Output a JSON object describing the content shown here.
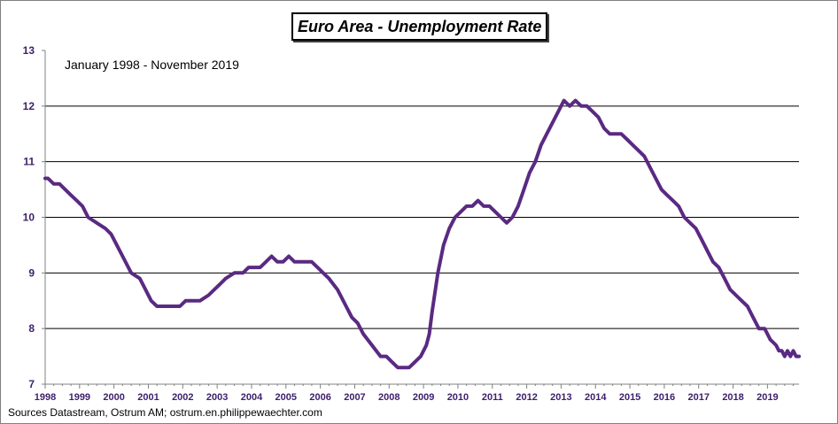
{
  "chart_data": {
    "type": "line",
    "title": "Euro Area - Unemployment Rate",
    "annotation": "January 1998 - November 2019",
    "source": "Sources Datastream, Ostrum AM;  ostrum.en.philippewaechter.com",
    "xlabel": "",
    "ylabel": "",
    "xlim": [
      1998.0,
      2019.917
    ],
    "ylim": [
      7,
      13
    ],
    "y_ticks": [
      "7",
      "8",
      "9",
      "10",
      "11",
      "12",
      "13"
    ],
    "x_ticks": [
      "1998",
      "1999",
      "2000",
      "2001",
      "2002",
      "2003",
      "2004",
      "2005",
      "2006",
      "2007",
      "2008",
      "2009",
      "2010",
      "2011",
      "2012",
      "2013",
      "2014",
      "2015",
      "2016",
      "2017",
      "2018",
      "2019"
    ],
    "grid": "horizontal",
    "legend": "none",
    "line_color": "#5a2a82",
    "tick_color": "#3d1f6b",
    "series": [
      {
        "x": [
          1998.0,
          1998.083,
          1998.25,
          1998.417,
          1998.583,
          1998.75,
          1998.917,
          1999.083,
          1999.25,
          1999.5,
          1999.75,
          1999.917,
          2000.083,
          2000.25,
          2000.5,
          2000.75,
          2000.917,
          2001.083,
          2001.25,
          2001.5,
          2001.75,
          2001.917,
          2002.083,
          2002.25,
          2002.5,
          2002.75,
          2002.917,
          2003.083,
          2003.25,
          2003.5,
          2003.75,
          2003.917,
          2004.083,
          2004.25,
          2004.417,
          2004.583,
          2004.75,
          2004.917,
          2005.083,
          2005.25,
          2005.5,
          2005.75,
          2005.917,
          2006.083,
          2006.25,
          2006.5,
          2006.75,
          2006.917,
          2007.083,
          2007.25,
          2007.5,
          2007.75,
          2007.917,
          2008.083,
          2008.25,
          2008.417,
          2008.583,
          2008.75,
          2008.917,
          2009.0,
          2009.083,
          2009.167,
          2009.25,
          2009.417,
          2009.583,
          2009.75,
          2009.917,
          2010.083,
          2010.25,
          2010.417,
          2010.583,
          2010.75,
          2010.917,
          2011.083,
          2011.25,
          2011.417,
          2011.583,
          2011.75,
          2011.917,
          2012.083,
          2012.25,
          2012.417,
          2012.583,
          2012.75,
          2012.917,
          2013.083,
          2013.25,
          2013.417,
          2013.583,
          2013.75,
          2013.917,
          2014.083,
          2014.25,
          2014.417,
          2014.583,
          2014.75,
          2014.917,
          2015.083,
          2015.25,
          2015.417,
          2015.583,
          2015.75,
          2015.917,
          2016.083,
          2016.25,
          2016.417,
          2016.583,
          2016.75,
          2016.917,
          2017.083,
          2017.25,
          2017.417,
          2017.583,
          2017.75,
          2017.917,
          2018.083,
          2018.25,
          2018.417,
          2018.583,
          2018.75,
          2018.917,
          2019.083,
          2019.25,
          2019.333,
          2019.417,
          2019.5,
          2019.583,
          2019.667,
          2019.75,
          2019.833,
          2019.917
        ],
        "y": [
          10.7,
          10.7,
          10.6,
          10.6,
          10.5,
          10.4,
          10.3,
          10.2,
          10.0,
          9.9,
          9.8,
          9.7,
          9.5,
          9.3,
          9.0,
          8.9,
          8.7,
          8.5,
          8.4,
          8.4,
          8.4,
          8.4,
          8.5,
          8.5,
          8.5,
          8.6,
          8.7,
          8.8,
          8.9,
          9.0,
          9.0,
          9.1,
          9.1,
          9.1,
          9.2,
          9.3,
          9.2,
          9.2,
          9.3,
          9.2,
          9.2,
          9.2,
          9.1,
          9.0,
          8.9,
          8.7,
          8.4,
          8.2,
          8.1,
          7.9,
          7.7,
          7.5,
          7.5,
          7.4,
          7.3,
          7.3,
          7.3,
          7.4,
          7.5,
          7.6,
          7.7,
          7.9,
          8.3,
          9.0,
          9.5,
          9.8,
          10.0,
          10.1,
          10.2,
          10.2,
          10.3,
          10.2,
          10.2,
          10.1,
          10.0,
          9.9,
          10.0,
          10.2,
          10.5,
          10.8,
          11.0,
          11.3,
          11.5,
          11.7,
          11.9,
          12.1,
          12.0,
          12.1,
          12.0,
          12.0,
          11.9,
          11.8,
          11.6,
          11.5,
          11.5,
          11.5,
          11.4,
          11.3,
          11.2,
          11.1,
          10.9,
          10.7,
          10.5,
          10.4,
          10.3,
          10.2,
          10.0,
          9.9,
          9.8,
          9.6,
          9.4,
          9.2,
          9.1,
          8.9,
          8.7,
          8.6,
          8.5,
          8.4,
          8.2,
          8.0,
          8.0,
          7.8,
          7.7,
          7.6,
          7.6,
          7.5,
          7.6,
          7.5,
          7.6,
          7.5,
          7.5
        ]
      }
    ]
  }
}
